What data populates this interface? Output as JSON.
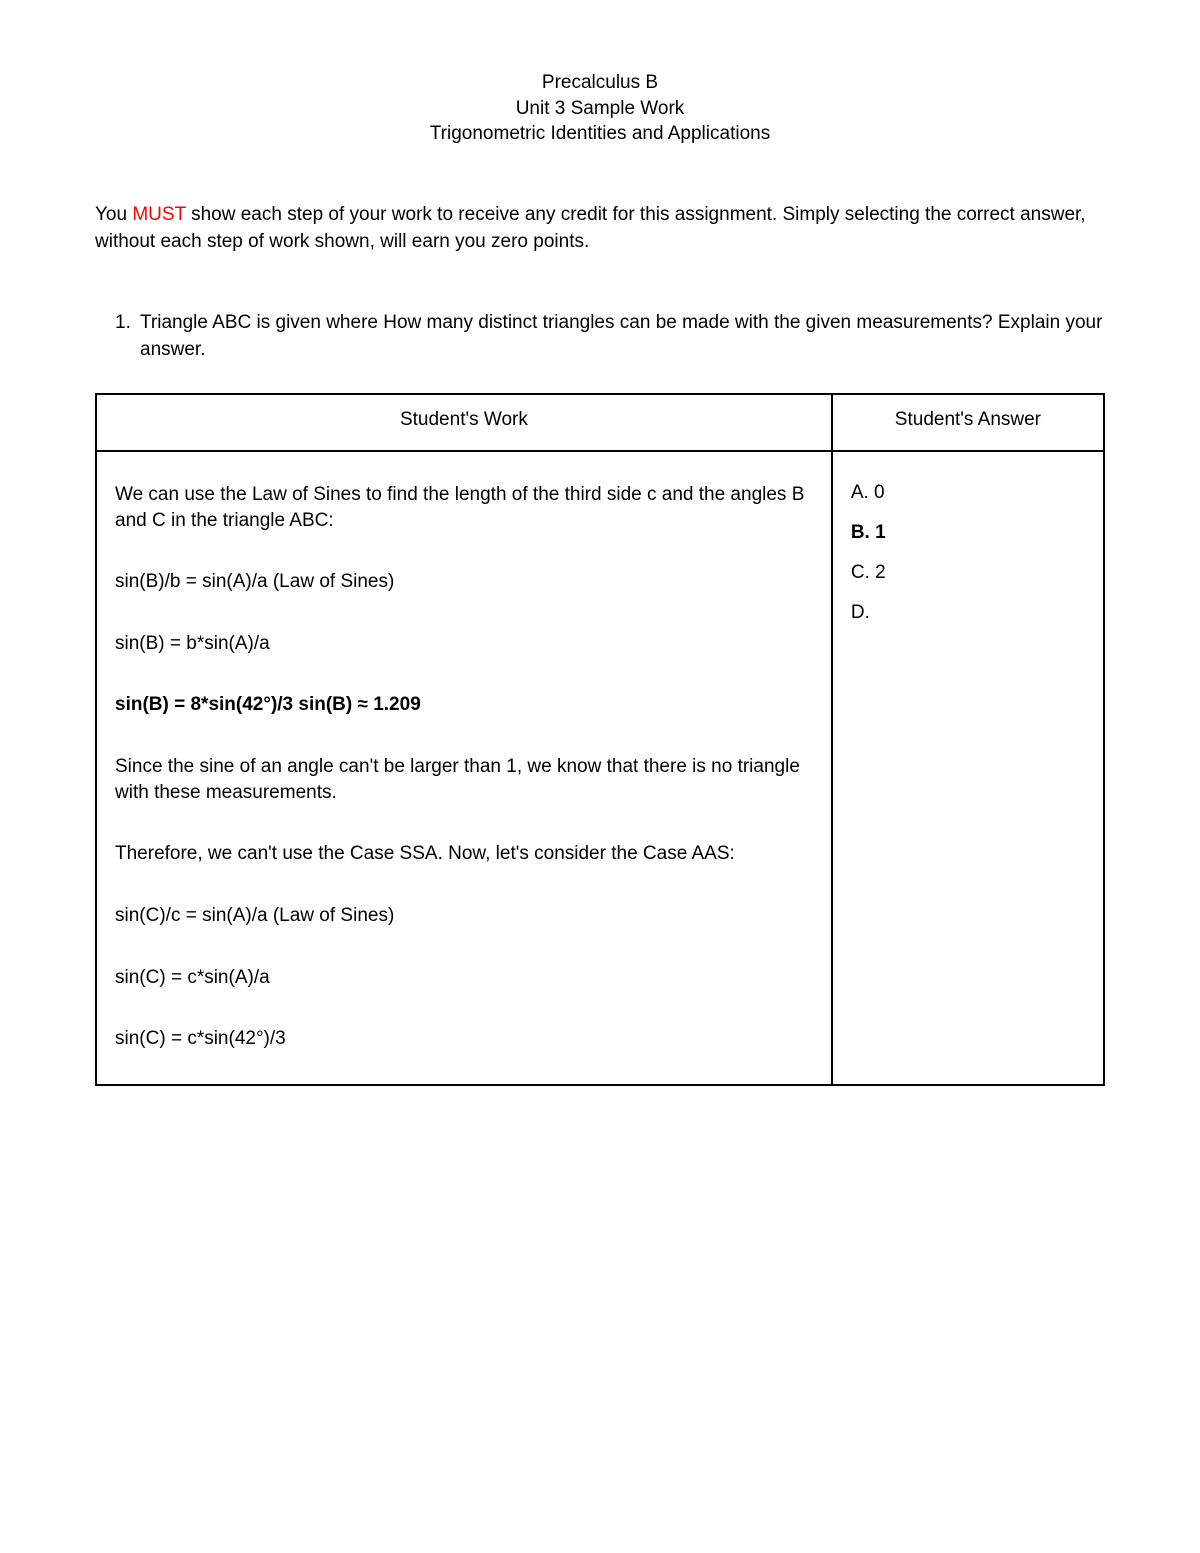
{
  "header": {
    "line1": "Precalculus B",
    "line2": "Unit 3 Sample Work",
    "line3": "Trigonometric Identities and Applications"
  },
  "instructions": {
    "prefix": "You ",
    "must": "MUST",
    "rest": " show each step of your work to receive any credit for this assignment.  Simply selecting the correct answer, without each step of work shown, will earn you zero points."
  },
  "question": {
    "number": "1.",
    "text": "Triangle ABC is given where    How many distinct triangles can be made with the given measurements?  Explain your answer."
  },
  "table": {
    "header_work": "Student's Work",
    "header_answer": "Student's Answer",
    "work_steps": [
      {
        "text": "We can use the Law of Sines to find the length of the third side c and the angles B and C in the triangle ABC:",
        "bold": false
      },
      {
        "text": "sin(B)/b = sin(A)/a (Law of Sines)",
        "bold": false
      },
      {
        "text": "sin(B) = b*sin(A)/a",
        "bold": false
      },
      {
        "text": "sin(B) = 8*sin(42°)/3 sin(B) ≈ 1.209",
        "bold": true
      },
      {
        "text": "Since the sine of an angle can't be larger than 1, we know that there is no triangle with these measurements.",
        "bold": false
      },
      {
        "text": "Therefore, we can't use the Case SSA. Now, let's consider the Case AAS:",
        "bold": false
      },
      {
        "text": "sin(C)/c = sin(A)/a (Law of Sines)",
        "bold": false
      },
      {
        "text": "sin(C) = c*sin(A)/a",
        "bold": false
      },
      {
        "text": "sin(C) = c*sin(42°)/3",
        "bold": false
      }
    ],
    "answers": [
      {
        "label": "A.  0",
        "selected": false
      },
      {
        "label": "B.  1",
        "selected": true
      },
      {
        "label": "C.  2",
        "selected": false
      },
      {
        "label": "D.",
        "selected": false
      }
    ]
  }
}
